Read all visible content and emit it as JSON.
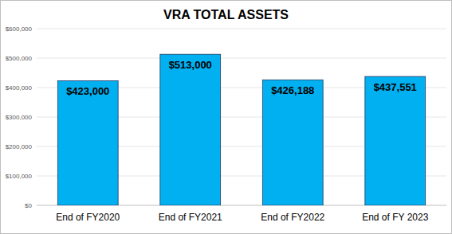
{
  "chart_data": {
    "type": "bar",
    "title": "VRA TOTAL ASSETS",
    "categories": [
      "End of FY2020",
      "End of FY2021",
      "End of FY2022",
      "End of FY 2023"
    ],
    "values": [
      423000,
      513000,
      426188,
      437551
    ],
    "value_labels": [
      "$423,000",
      "$513,000",
      "$426,188",
      "$437,551"
    ],
    "color": "#00b0f0",
    "ylim": [
      0,
      600000
    ],
    "yticks": [
      {
        "value": 0,
        "label": "$0"
      },
      {
        "value": 100000,
        "label": "$100,000"
      },
      {
        "value": 200000,
        "label": "$200,000"
      },
      {
        "value": 300000,
        "label": "$300,000"
      },
      {
        "value": 400000,
        "label": "$400,000"
      },
      {
        "value": 500000,
        "label": "$500,000"
      },
      {
        "value": 600000,
        "label": "$600,000"
      }
    ],
    "grid": true,
    "data_labels": true
  }
}
